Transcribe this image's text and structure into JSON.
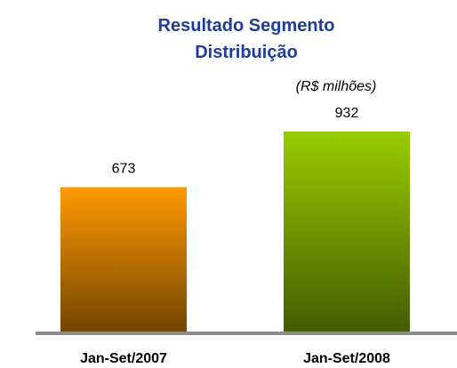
{
  "chart_data": {
    "type": "bar",
    "title": "Resultado Segmento Distribuição",
    "subtitle": "(R$ milhões)",
    "categories": [
      "Jan-Set/2007",
      "Jan-Set/2008"
    ],
    "values": [
      673,
      932
    ],
    "colors": [
      "#ff9900",
      "#99cc00"
    ]
  }
}
